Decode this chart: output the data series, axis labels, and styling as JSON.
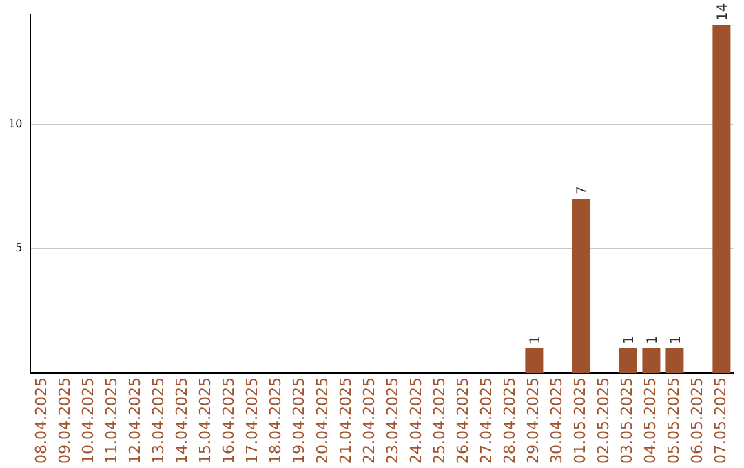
{
  "chart_data": {
    "type": "bar",
    "categories": [
      "08.04.2025",
      "09.04.2025",
      "10.04.2025",
      "11.04.2025",
      "12.04.2025",
      "13.04.2025",
      "14.04.2025",
      "15.04.2025",
      "16.04.2025",
      "17.04.2025",
      "18.04.2025",
      "19.04.2025",
      "20.04.2025",
      "21.04.2025",
      "22.04.2025",
      "23.04.2025",
      "24.04.2025",
      "25.04.2025",
      "26.04.2025",
      "27.04.2025",
      "28.04.2025",
      "29.04.2025",
      "30.04.2025",
      "01.05.2025",
      "02.05.2025",
      "03.05.2025",
      "04.05.2025",
      "05.05.2025",
      "06.05.2025",
      "07.05.2025"
    ],
    "values": [
      0,
      0,
      0,
      0,
      0,
      0,
      0,
      0,
      0,
      0,
      0,
      0,
      0,
      0,
      0,
      0,
      0,
      0,
      0,
      0,
      0,
      1,
      0,
      7,
      0,
      1,
      1,
      1,
      0,
      14
    ],
    "value_labels": [
      null,
      null,
      null,
      null,
      null,
      null,
      null,
      null,
      null,
      null,
      null,
      null,
      null,
      null,
      null,
      null,
      null,
      null,
      null,
      null,
      null,
      "1",
      null,
      "7",
      null,
      "1",
      "1",
      "1",
      null,
      "14"
    ],
    "color": "#a0522d",
    "ylim": [
      0,
      14.4
    ],
    "yticks": [
      5,
      10
    ],
    "grid": "y",
    "legend": false
  }
}
